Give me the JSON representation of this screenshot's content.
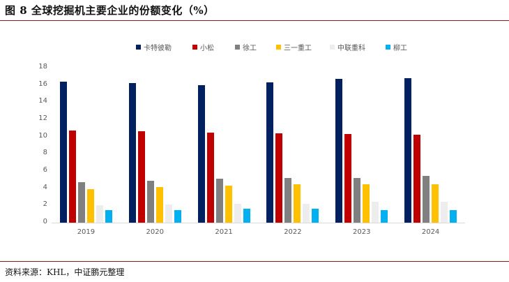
{
  "title": "图 8  全球挖掘机主要企业的份额变化（%）",
  "source": "资料来源：KHL，中证鹏元整理",
  "chart_data": {
    "type": "bar",
    "title": "全球挖掘机主要企业的份额变化（%）",
    "xlabel": "",
    "ylabel": "",
    "ylim": [
      0,
      18
    ],
    "yticks": [
      0,
      2,
      4,
      6,
      8,
      10,
      12,
      14,
      16,
      18
    ],
    "grid": false,
    "legend_position": "top",
    "categories": [
      "2019",
      "2020",
      "2021",
      "2022",
      "2023",
      "2024"
    ],
    "series": [
      {
        "name": "卡特彼勒",
        "color": "#002060",
        "values": [
          16.4,
          16.2,
          16.0,
          16.3,
          16.7,
          16.8
        ]
      },
      {
        "name": "小松",
        "color": "#C00000",
        "values": [
          10.7,
          10.6,
          10.5,
          10.4,
          10.3,
          10.2
        ]
      },
      {
        "name": "徐工",
        "color": "#808080",
        "values": [
          4.7,
          4.9,
          5.1,
          5.2,
          5.2,
          5.4
        ]
      },
      {
        "name": "三一重工",
        "color": "#FFC000",
        "values": [
          3.9,
          4.1,
          4.3,
          4.5,
          4.5,
          4.5
        ]
      },
      {
        "name": "中联重科",
        "color": "#EDEDED",
        "values": [
          2.0,
          2.1,
          2.2,
          2.2,
          2.4,
          2.4
        ]
      },
      {
        "name": "柳工",
        "color": "#00B0F0",
        "values": [
          1.5,
          1.5,
          1.6,
          1.6,
          1.5,
          1.5
        ]
      }
    ]
  }
}
